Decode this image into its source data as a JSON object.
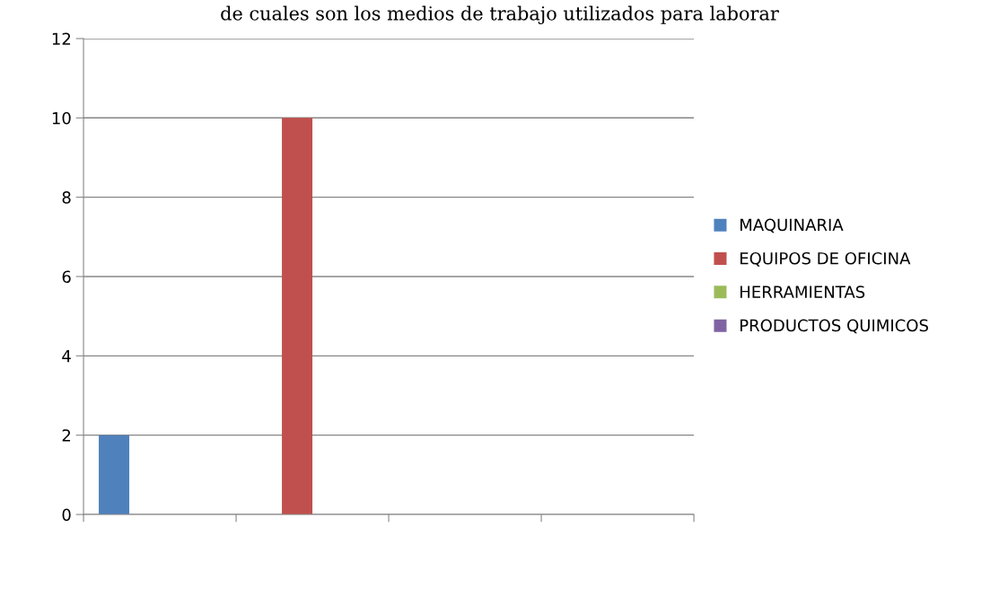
{
  "chart_data": {
    "type": "bar",
    "title": "de cuales son los medios de trabajo utilizados para laborar",
    "categories": [
      null,
      null,
      null,
      null
    ],
    "series": [
      {
        "name": "MAQUINARIA",
        "color": "#4f81bd",
        "values": [
          2,
          0,
          0,
          0
        ]
      },
      {
        "name": "EQUIPOS DE OFICINA",
        "color": "#c0504d",
        "values": [
          0,
          10,
          0,
          0
        ]
      },
      {
        "name": "HERRAMIENTAS",
        "color": "#9bbb59",
        "values": [
          0,
          0,
          0,
          0
        ]
      },
      {
        "name": "PRODUCTOS QUIMICOS",
        "color": "#8064a2",
        "values": [
          0,
          0,
          0,
          0
        ]
      }
    ],
    "ylim": [
      0,
      12
    ],
    "yticks": [
      0,
      2,
      4,
      6,
      8,
      10,
      12
    ],
    "grid": "y",
    "legend": "right",
    "tick_labels": "y"
  }
}
